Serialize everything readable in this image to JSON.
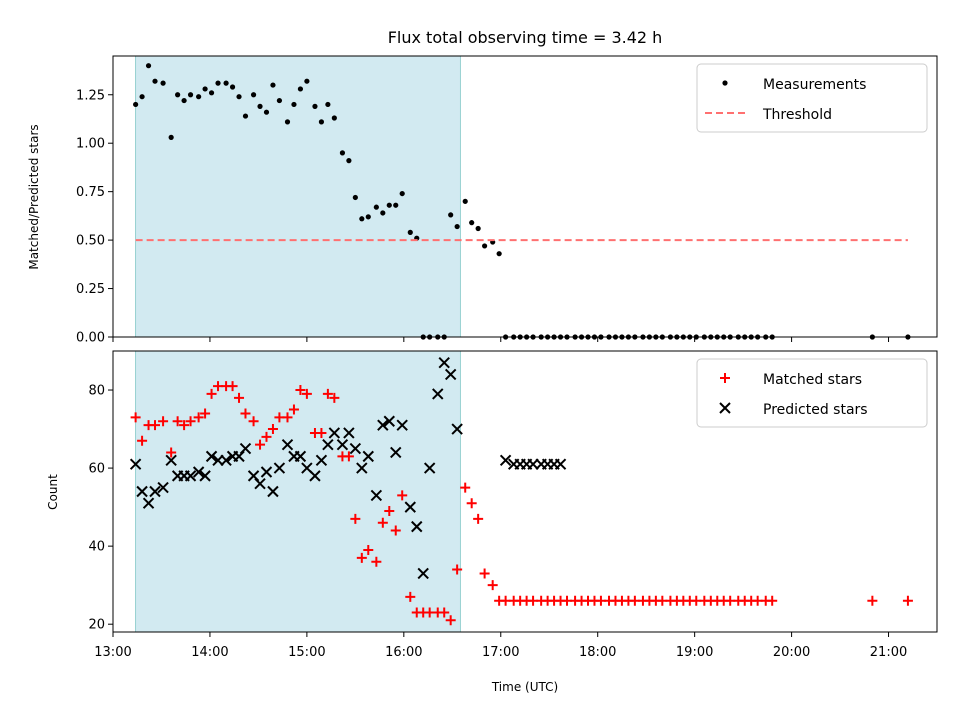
{
  "chart_data": [
    {
      "type": "scatter",
      "title": "Flux total observing time = 3.42 h",
      "xlabel": "",
      "ylabel": "Matched/Predicted stars",
      "xlim": [
        "13:00",
        "21:30"
      ],
      "ylim": [
        0,
        1.45
      ],
      "yticks": [
        "0.00",
        "0.25",
        "0.50",
        "0.75",
        "1.00",
        "1.25"
      ],
      "shaded_span": [
        "13:14",
        "16:35"
      ],
      "shade_color": "#add8e6",
      "legend_position": "upper right",
      "series": [
        {
          "name": "Measurements",
          "marker": "dot",
          "color": "#000000",
          "x": [
            "13:14",
            "13:18",
            "13:22",
            "13:26",
            "13:31",
            "13:36",
            "13:40",
            "13:44",
            "13:48",
            "13:53",
            "13:57",
            "14:01",
            "14:05",
            "14:10",
            "14:14",
            "14:18",
            "14:22",
            "14:27",
            "14:31",
            "14:35",
            "14:39",
            "14:43",
            "14:48",
            "14:52",
            "14:56",
            "15:00",
            "15:05",
            "15:09",
            "15:13",
            "15:17",
            "15:22",
            "15:26",
            "15:30",
            "15:34",
            "15:38",
            "15:43",
            "15:47",
            "15:51",
            "15:55",
            "15:59",
            "16:04",
            "16:08",
            "16:12",
            "16:16",
            "16:21",
            "16:25",
            "16:29",
            "16:33",
            "16:38",
            "16:42",
            "16:46",
            "16:50",
            "16:55",
            "16:59",
            "17:03",
            "17:08",
            "17:12",
            "17:16",
            "17:20",
            "17:25",
            "17:29",
            "17:33",
            "17:37",
            "17:41",
            "17:46",
            "17:50",
            "17:54",
            "17:58",
            "18:02",
            "18:07",
            "18:11",
            "18:15",
            "18:19",
            "18:23",
            "18:28",
            "18:32",
            "18:36",
            "18:40",
            "18:45",
            "18:49",
            "18:53",
            "18:57",
            "19:01",
            "19:06",
            "19:10",
            "19:14",
            "19:18",
            "19:22",
            "19:27",
            "19:31",
            "19:35",
            "19:39",
            "19:44",
            "19:48",
            "20:50",
            "21:12"
          ],
          "y": [
            1.2,
            1.24,
            1.4,
            1.32,
            1.31,
            1.03,
            1.25,
            1.22,
            1.25,
            1.24,
            1.28,
            1.26,
            1.31,
            1.31,
            1.29,
            1.24,
            1.14,
            1.25,
            1.19,
            1.16,
            1.3,
            1.22,
            1.11,
            1.2,
            1.28,
            1.32,
            1.19,
            1.11,
            1.2,
            1.13,
            0.95,
            0.91,
            0.72,
            0.61,
            0.62,
            0.67,
            0.64,
            0.68,
            0.68,
            0.74,
            0.54,
            0.51,
            0.0,
            0.0,
            0.0,
            0.0,
            0.63,
            0.57,
            0.7,
            0.59,
            0.56,
            0.47,
            0.49,
            0.43,
            0.0,
            0.0,
            0.0,
            0.0,
            0.0,
            0.0,
            0.0,
            0.0,
            0.0,
            0.0,
            0.0,
            0.0,
            0.0,
            0.0,
            0.0,
            0.0,
            0.0,
            0.0,
            0.0,
            0.0,
            0.0,
            0.0,
            0.0,
            0.0,
            0.0,
            0.0,
            0.0,
            0.0,
            0.0,
            0.0,
            0.0,
            0.0,
            0.0,
            0.0,
            0.0,
            0.0,
            0.0,
            0.0,
            0.0,
            0.0,
            0.0,
            0.0
          ]
        },
        {
          "name": "Threshold",
          "style": "dashed",
          "color": "#ff7070",
          "x": [
            "13:14",
            "21:12"
          ],
          "y": [
            0.5,
            0.5
          ]
        }
      ]
    },
    {
      "type": "scatter",
      "title": "",
      "xlabel": "Time (UTC)",
      "ylabel": "Count",
      "xlim": [
        "13:00",
        "21:30"
      ],
      "ylim": [
        18,
        90
      ],
      "yticks": [
        "20",
        "40",
        "60",
        "80"
      ],
      "xticks": [
        "13:00",
        "14:00",
        "15:00",
        "16:00",
        "17:00",
        "18:00",
        "19:00",
        "20:00",
        "21:00"
      ],
      "shaded_span": [
        "13:14",
        "16:35"
      ],
      "shade_color": "#add8e6",
      "legend_position": "upper right",
      "series": [
        {
          "name": "Matched stars",
          "marker": "plus",
          "color": "#ff0000",
          "x": [
            "13:14",
            "13:18",
            "13:22",
            "13:26",
            "13:31",
            "13:36",
            "13:40",
            "13:44",
            "13:48",
            "13:53",
            "13:57",
            "14:01",
            "14:05",
            "14:10",
            "14:14",
            "14:18",
            "14:22",
            "14:27",
            "14:31",
            "14:35",
            "14:39",
            "14:43",
            "14:48",
            "14:52",
            "14:56",
            "15:00",
            "15:05",
            "15:09",
            "15:13",
            "15:17",
            "15:22",
            "15:26",
            "15:30",
            "15:34",
            "15:38",
            "15:43",
            "15:47",
            "15:51",
            "15:55",
            "15:59",
            "16:04",
            "16:08",
            "16:12",
            "16:16",
            "16:21",
            "16:25",
            "16:29",
            "16:33",
            "16:38",
            "16:42",
            "16:46",
            "16:50",
            "16:55",
            "16:59",
            "17:03",
            "17:08",
            "17:12",
            "17:16",
            "17:20",
            "17:25",
            "17:29",
            "17:33",
            "17:37",
            "17:41",
            "17:46",
            "17:50",
            "17:54",
            "17:58",
            "18:02",
            "18:07",
            "18:11",
            "18:15",
            "18:19",
            "18:23",
            "18:28",
            "18:32",
            "18:36",
            "18:40",
            "18:45",
            "18:49",
            "18:53",
            "18:57",
            "19:01",
            "19:06",
            "19:10",
            "19:14",
            "19:18",
            "19:22",
            "19:27",
            "19:31",
            "19:35",
            "19:39",
            "19:44",
            "19:48",
            "20:50",
            "21:12"
          ],
          "y": [
            73,
            67,
            71,
            71,
            72,
            64,
            72,
            71,
            72,
            73,
            74,
            79,
            81,
            81,
            81,
            78,
            74,
            72,
            66,
            68,
            70,
            73,
            73,
            75,
            80,
            79,
            69,
            69,
            79,
            78,
            63,
            63,
            47,
            37,
            39,
            36,
            46,
            49,
            44,
            53,
            27,
            23,
            23,
            23,
            23,
            23,
            21,
            34,
            55,
            51,
            47,
            33,
            30,
            26,
            26,
            26,
            26,
            26,
            26,
            26,
            26,
            26,
            26,
            26,
            26,
            26,
            26,
            26,
            26,
            26,
            26,
            26,
            26,
            26,
            26,
            26,
            26,
            26,
            26,
            26,
            26,
            26,
            26,
            26,
            26,
            26,
            26,
            26,
            26,
            26,
            26,
            26,
            26,
            26,
            26,
            26
          ]
        },
        {
          "name": "Predicted stars",
          "marker": "x",
          "color": "#000000",
          "x": [
            "13:14",
            "13:18",
            "13:22",
            "13:26",
            "13:31",
            "13:36",
            "13:40",
            "13:44",
            "13:48",
            "13:53",
            "13:57",
            "14:01",
            "14:05",
            "14:10",
            "14:14",
            "14:18",
            "14:22",
            "14:27",
            "14:31",
            "14:35",
            "14:39",
            "14:43",
            "14:48",
            "14:52",
            "14:56",
            "15:00",
            "15:05",
            "15:09",
            "15:13",
            "15:17",
            "15:22",
            "15:26",
            "15:30",
            "15:34",
            "15:38",
            "15:43",
            "15:47",
            "15:51",
            "15:55",
            "15:59",
            "16:04",
            "16:08",
            "16:12",
            "16:16",
            "16:21",
            "16:25",
            "16:29",
            "16:33",
            "17:03",
            "17:08",
            "17:12",
            "17:16",
            "17:20",
            "17:25",
            "17:29",
            "17:33",
            "17:37"
          ],
          "y": [
            61,
            54,
            51,
            54,
            55,
            62,
            58,
            58,
            58,
            59,
            58,
            63,
            62,
            62,
            63,
            63,
            65,
            58,
            56,
            59,
            54,
            60,
            66,
            63,
            63,
            60,
            58,
            62,
            66,
            69,
            66,
            69,
            65,
            60,
            63,
            53,
            71,
            72,
            64,
            71,
            50,
            45,
            33,
            60,
            79,
            87,
            84,
            70,
            62,
            61,
            61,
            61,
            61,
            61,
            61,
            61,
            61
          ]
        }
      ]
    }
  ]
}
